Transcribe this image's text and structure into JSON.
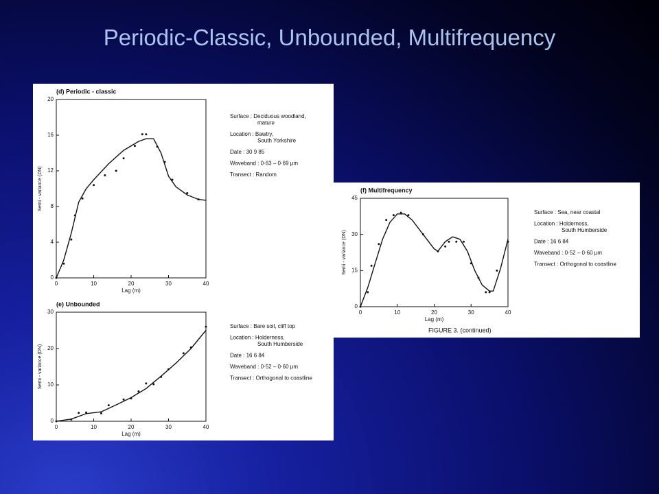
{
  "title": "Periodic-Classic, Unbounded, Multifrequency",
  "caption": "FIGURE 3.   (continued)",
  "chart_data": [
    {
      "type": "scatter",
      "title": "(d)  Periodic - classic",
      "x_label": "Lag (m)",
      "y_label": "Semi - variance (DN)",
      "xlim": [
        0,
        40
      ],
      "ylim": [
        0,
        20
      ],
      "xticks": [
        0,
        10,
        20,
        30,
        40
      ],
      "yticks": [
        0,
        4,
        8,
        12,
        16,
        20
      ],
      "x": [
        0,
        2,
        4,
        5,
        7,
        10,
        13,
        16,
        18,
        21,
        23,
        24,
        27,
        29,
        31,
        35,
        38
      ],
      "values": [
        0,
        1.6,
        4.3,
        7,
        8.9,
        10.4,
        11.5,
        12,
        13.4,
        14.8,
        16.1,
        16.1,
        14.7,
        13,
        11,
        9.5,
        8.8
      ],
      "fit_x": [
        0,
        2,
        4,
        6,
        8,
        10,
        14,
        18,
        22,
        24,
        26,
        28,
        30,
        32,
        35,
        38,
        40
      ],
      "fit_values": [
        0,
        2,
        5,
        8.5,
        10,
        11,
        12.8,
        14.3,
        15.3,
        15.6,
        15.6,
        14,
        11.4,
        10.2,
        9.3,
        8.8,
        8.7
      ],
      "notes": [
        [
          "Surface : Deciduous woodland,",
          "mature"
        ],
        [
          "Location : Bawtry,",
          "South Yorkshire"
        ],
        [
          "Date : 30 9 85"
        ],
        [
          "Waveband : 0·63 – 0·69 μm"
        ],
        [
          "Transect : Random"
        ]
      ]
    },
    {
      "type": "scatter",
      "title": "(e)  Unbounded",
      "x_label": "Lag (m)",
      "y_label": "Semi - variance (DN)",
      "xlim": [
        0,
        40
      ],
      "ylim": [
        0,
        30
      ],
      "xticks": [
        0,
        10,
        20,
        30,
        40
      ],
      "yticks": [
        0,
        10,
        20,
        30
      ],
      "x": [
        0,
        4,
        6,
        8,
        12,
        14,
        18,
        20,
        22,
        24,
        26,
        28,
        30,
        34,
        36,
        40
      ],
      "values": [
        0,
        0.5,
        2.3,
        2.4,
        2.2,
        4.4,
        6,
        6.3,
        8.2,
        10.4,
        10.2,
        12.2,
        14.3,
        18.7,
        20.3,
        26
      ],
      "fit_x": [
        0,
        4,
        8,
        12,
        16,
        20,
        24,
        28,
        32,
        36,
        40
      ],
      "fit_values": [
        0,
        0.6,
        2.1,
        2.6,
        4.5,
        6.5,
        9,
        12.4,
        16,
        20,
        25
      ],
      "notes": [
        [
          "Surface : Bare soil, cliff top"
        ],
        [
          "Location : Holderness,",
          "South Humberside"
        ],
        [
          "Date : 16 6 84"
        ],
        [
          "Waveband : 0·52 – 0·60 μm"
        ],
        [
          "Transect : Orthogonal to coastline"
        ]
      ]
    },
    {
      "type": "scatter",
      "title": "(f)  Multifrequency",
      "x_label": "Lag (m)",
      "y_label": "Semi - variance (DN)",
      "xlim": [
        0,
        40
      ],
      "ylim": [
        0,
        45
      ],
      "xticks": [
        0,
        10,
        20,
        30,
        40
      ],
      "yticks": [
        0,
        15,
        30,
        45
      ],
      "x": [
        0,
        2,
        3,
        5,
        7,
        9,
        11,
        13,
        17,
        21,
        23,
        24,
        26,
        28,
        30,
        32,
        34,
        35,
        37,
        40
      ],
      "values": [
        0,
        6,
        17,
        26,
        36,
        38,
        39,
        38,
        30,
        23,
        25,
        27,
        27,
        27,
        18,
        12,
        6,
        6,
        15,
        27
      ],
      "fit_x": [
        0,
        2,
        4,
        6,
        8,
        10,
        12,
        14,
        17,
        20,
        21,
        23,
        25,
        27,
        29,
        31,
        33,
        35,
        36,
        38,
        40
      ],
      "fit_values": [
        0,
        8,
        18,
        28,
        35,
        38.5,
        38.5,
        36,
        30,
        24,
        23,
        27,
        29,
        28,
        23,
        15,
        9,
        6.5,
        6.5,
        16,
        28
      ],
      "notes": [
        [
          "Surface : Sea, near coastal"
        ],
        [
          "Location : Holderness,",
          "South Humberside"
        ],
        [
          "Date : 16 6 84"
        ],
        [
          "Waveband : 0·52 – 0·60 μm"
        ],
        [
          "Transect : Orthogonal to coastline"
        ]
      ]
    }
  ]
}
